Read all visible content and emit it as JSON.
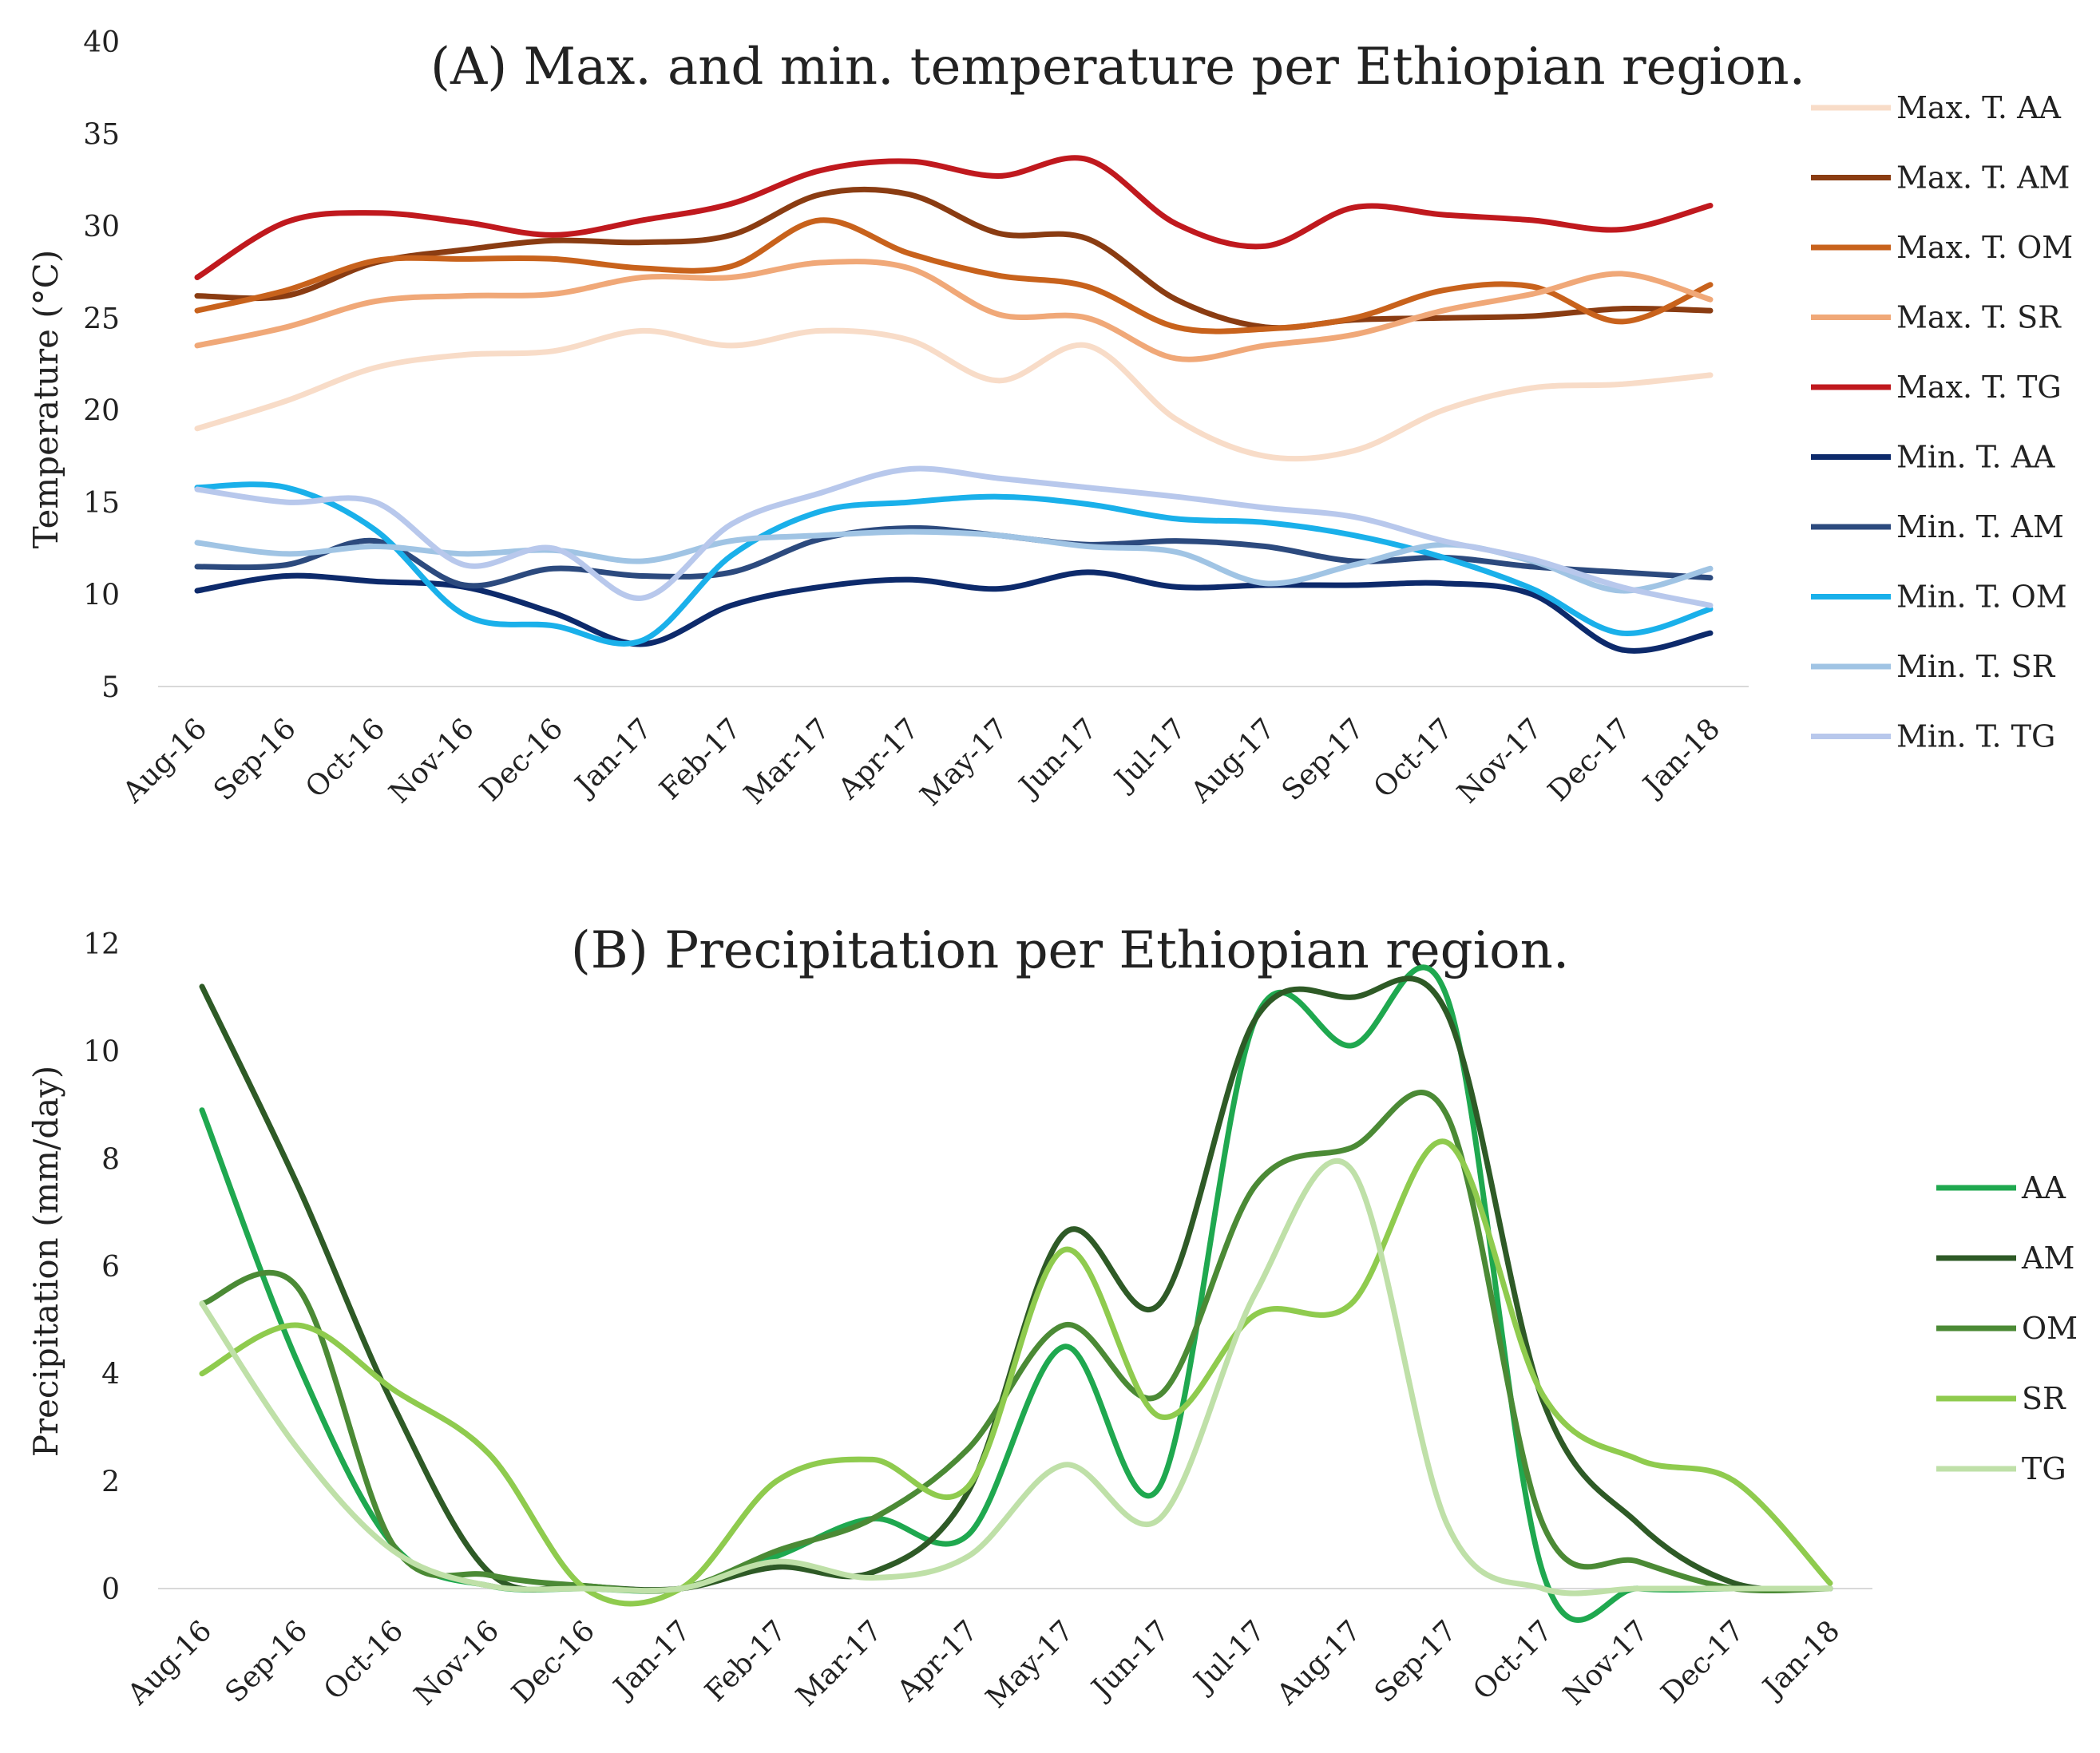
{
  "chart_data": [
    {
      "type": "line",
      "title": "(A) Max. and min. temperature per Ethiopian region.",
      "xlabel": "",
      "ylabel": "Temperature (°C)",
      "ylim": [
        5,
        40
      ],
      "yticks": [
        5,
        10,
        15,
        20,
        25,
        30,
        35,
        40
      ],
      "grid": false,
      "legend": "right",
      "categories": [
        "Aug-16",
        "Sep-16",
        "Oct-16",
        "Nov-16",
        "Dec-16",
        "Jan-17",
        "Feb-17",
        "Mar-17",
        "Apr-17",
        "May-17",
        "Jun-17",
        "Jul-17",
        "Aug-17",
        "Sep-17",
        "Oct-17",
        "Nov-17",
        "Dec-17",
        "Jan-18"
      ],
      "series": [
        {
          "name": "Max. T. AA",
          "color": "#f8dcc8",
          "values": [
            19.0,
            20.5,
            22.3,
            23.0,
            23.2,
            24.3,
            23.5,
            24.3,
            23.8,
            21.6,
            23.5,
            19.5,
            17.5,
            17.8,
            20.0,
            21.2,
            21.4,
            21.9
          ]
        },
        {
          "name": "Max. T. AM",
          "color": "#8a3c12",
          "values": [
            26.2,
            26.2,
            28.0,
            28.7,
            29.2,
            29.1,
            29.5,
            31.7,
            31.7,
            29.6,
            29.3,
            26.0,
            24.5,
            24.9,
            25.0,
            25.1,
            25.5,
            25.4
          ]
        },
        {
          "name": "Max. T. OM",
          "color": "#c8621c",
          "values": [
            25.4,
            26.5,
            28.1,
            28.2,
            28.2,
            27.7,
            27.8,
            30.3,
            28.5,
            27.3,
            26.7,
            24.5,
            24.4,
            25.0,
            26.5,
            26.7,
            24.8,
            26.8
          ]
        },
        {
          "name": "Max. T. SR",
          "color": "#f0a878",
          "values": [
            23.5,
            24.5,
            25.9,
            26.2,
            26.3,
            27.2,
            27.2,
            28.0,
            27.7,
            25.2,
            25.0,
            22.8,
            23.5,
            24.1,
            25.4,
            26.3,
            27.4,
            26.0
          ]
        },
        {
          "name": "Max. T. TG",
          "color": "#c0191e",
          "values": [
            27.2,
            30.2,
            30.7,
            30.2,
            29.5,
            30.3,
            31.2,
            33.0,
            33.5,
            32.7,
            33.6,
            30.1,
            28.9,
            31.0,
            30.6,
            30.3,
            29.8,
            31.1
          ]
        },
        {
          "name": "Min. T. AA",
          "color": "#0d2a6b",
          "values": [
            10.2,
            11.0,
            10.7,
            10.4,
            9.0,
            7.3,
            9.4,
            10.4,
            10.8,
            10.3,
            11.2,
            10.4,
            10.5,
            10.5,
            10.6,
            10.0,
            7.0,
            7.9
          ]
        },
        {
          "name": "Min. T. AM",
          "color": "#2c4a7e",
          "values": [
            11.5,
            11.6,
            12.9,
            10.5,
            11.4,
            11.0,
            11.2,
            13.0,
            13.6,
            13.2,
            12.7,
            12.9,
            12.6,
            11.8,
            12.0,
            11.5,
            11.2,
            10.9
          ]
        },
        {
          "name": "Min. T. OM",
          "color": "#1ab0ea",
          "values": [
            15.8,
            15.8,
            13.5,
            8.9,
            8.3,
            7.5,
            12.1,
            14.5,
            15.0,
            15.3,
            14.9,
            14.1,
            13.9,
            13.2,
            12.0,
            10.3,
            7.9,
            9.2
          ]
        },
        {
          "name": "Min. T. SR",
          "color": "#a0c4e4",
          "values": [
            12.8,
            12.2,
            12.6,
            12.2,
            12.4,
            11.8,
            12.9,
            13.2,
            13.4,
            13.2,
            12.6,
            12.3,
            10.6,
            11.6,
            12.7,
            11.8,
            10.2,
            11.4
          ]
        },
        {
          "name": "Min. T. TG",
          "color": "#b8c8ec",
          "values": [
            15.7,
            15.0,
            15.0,
            11.6,
            12.5,
            9.8,
            13.8,
            15.5,
            16.8,
            16.3,
            15.8,
            15.3,
            14.7,
            14.2,
            12.9,
            11.9,
            10.4,
            9.4
          ]
        }
      ]
    },
    {
      "type": "line",
      "title": "(B) Precipitation per Ethiopian region.",
      "xlabel": "",
      "ylabel": "Precipitation (mm/day)",
      "ylim": [
        0,
        12
      ],
      "yticks": [
        0,
        2,
        4,
        6,
        8,
        10,
        12
      ],
      "grid": false,
      "legend": "right",
      "categories": [
        "Aug-16",
        "Sep-16",
        "Oct-16",
        "Nov-16",
        "Dec-16",
        "Jan-17",
        "Feb-17",
        "Mar-17",
        "Apr-17",
        "May-17",
        "Jun-17",
        "Jul-17",
        "Aug-17",
        "Sep-17",
        "Oct-17",
        "Nov-17",
        "Dec-17",
        "Jan-18"
      ],
      "series": [
        {
          "name": "AA",
          "color": "#1fa84f",
          "values": [
            8.9,
            4.2,
            0.8,
            0.05,
            0.0,
            0.0,
            0.6,
            1.3,
            1.0,
            4.5,
            1.9,
            10.6,
            10.1,
            11.0,
            0.3,
            0.0,
            0.0,
            0.0
          ]
        },
        {
          "name": "AM",
          "color": "#2e5a26",
          "values": [
            11.2,
            7.5,
            3.4,
            0.3,
            0.05,
            0.0,
            0.4,
            0.3,
            1.8,
            6.6,
            5.3,
            10.6,
            11.0,
            10.7,
            3.5,
            1.2,
            0.1,
            0.0
          ]
        },
        {
          "name": "OM",
          "color": "#4b8a35",
          "values": [
            5.3,
            5.6,
            0.8,
            0.25,
            0.05,
            0.0,
            0.7,
            1.3,
            2.6,
            4.9,
            3.6,
            7.5,
            8.2,
            8.8,
            1.2,
            0.5,
            0.0,
            0.0
          ]
        },
        {
          "name": "SR",
          "color": "#8fcb4e",
          "values": [
            4.0,
            4.9,
            3.7,
            2.5,
            0.0,
            0.0,
            2.0,
            2.4,
            1.9,
            6.3,
            3.2,
            5.1,
            5.3,
            8.3,
            3.6,
            2.4,
            2.0,
            0.1
          ]
        },
        {
          "name": "TG",
          "color": "#bfe0a8",
          "values": [
            5.3,
            2.6,
            0.7,
            0.05,
            0.0,
            0.0,
            0.5,
            0.2,
            0.6,
            2.3,
            1.3,
            5.5,
            7.8,
            1.2,
            0.0,
            0.0,
            0.0,
            0.0
          ]
        }
      ]
    }
  ]
}
